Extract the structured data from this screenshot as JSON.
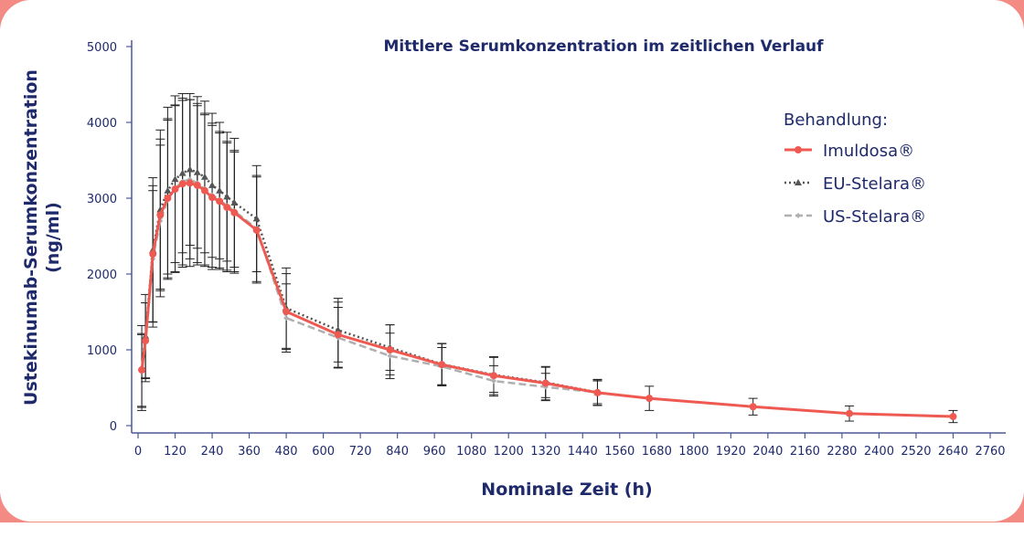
{
  "chart_data": {
    "type": "line",
    "title": "Mittlere Serumkonzentration im zeitlichen Verlauf",
    "xlabel": "Nominale Zeit (h)",
    "ylabel_line1": "Ustekinumab-Serumkonzentration",
    "ylabel_line2": "(ng/ml)",
    "xlim": [
      0,
      2760
    ],
    "ylim": [
      0,
      5000
    ],
    "xticks": [
      0,
      120,
      240,
      360,
      480,
      600,
      720,
      840,
      960,
      1080,
      1200,
      1320,
      1440,
      1560,
      1680,
      1800,
      1920,
      2040,
      2160,
      2280,
      2400,
      2520,
      2640,
      2760
    ],
    "yticks": [
      0,
      1000,
      2000,
      3000,
      4000,
      5000
    ],
    "legend_title": "Behandlung:",
    "legend_position": "top-right",
    "series": [
      {
        "name": "Imuldosa®",
        "color": "#ee5a52",
        "style": "solid",
        "marker": "circle",
        "x": [
          12,
          24,
          48,
          72,
          96,
          120,
          144,
          168,
          192,
          216,
          240,
          264,
          288,
          312,
          384,
          480,
          648,
          816,
          984,
          1152,
          1320,
          1488,
          1656,
          1992,
          2304,
          2640
        ],
        "y": [
          735,
          1120,
          2265,
          2780,
          3000,
          3120,
          3190,
          3200,
          3170,
          3100,
          3010,
          2960,
          2880,
          2810,
          2580,
          1505,
          1200,
          1000,
          805,
          660,
          560,
          435,
          360,
          250,
          160,
          120
        ],
        "sd": [
          480,
          500,
          900,
          1000,
          1050,
          1100,
          1100,
          1100,
          1050,
          1000,
          950,
          900,
          850,
          800,
          700,
          500,
          430,
          330,
          280,
          250,
          220,
          170,
          160,
          110,
          100,
          80
        ]
      },
      {
        "name": "EU-Stelara®",
        "color": "#555555",
        "style": "dotted",
        "marker": "triangle",
        "x": [
          12,
          24,
          48,
          72,
          96,
          120,
          144,
          168,
          192,
          216,
          240,
          264,
          288,
          312,
          384,
          480,
          648,
          816,
          984,
          1152,
          1320,
          1488
        ],
        "y": [
          760,
          1180,
          2320,
          2850,
          3100,
          3250,
          3330,
          3380,
          3340,
          3280,
          3170,
          3100,
          3020,
          2940,
          2730,
          1550,
          1260,
          1030,
          810,
          670,
          570,
          440
        ],
        "sd": [
          560,
          550,
          950,
          1050,
          1100,
          1100,
          1050,
          1000,
          1000,
          1000,
          950,
          900,
          850,
          850,
          700,
          530,
          420,
          300,
          270,
          230,
          200,
          170
        ]
      },
      {
        "name": "US-Stelara®",
        "color": "#b0b0b0",
        "style": "dashed",
        "marker": "diamond",
        "x": [
          12,
          24,
          48,
          72,
          96,
          120,
          144,
          168,
          192,
          216,
          240,
          264,
          288,
          312,
          384,
          480,
          648,
          816,
          984,
          1152,
          1320,
          1488
        ],
        "y": [
          720,
          1100,
          2200,
          2700,
          2980,
          3130,
          3220,
          3250,
          3200,
          3120,
          3040,
          2980,
          2900,
          2830,
          2600,
          1420,
          1160,
          920,
          780,
          590,
          510,
          440
        ],
        "sd": [
          480,
          520,
          900,
          1000,
          1050,
          1100,
          1100,
          1050,
          1050,
          1000,
          950,
          900,
          850,
          800,
          700,
          450,
          400,
          300,
          250,
          200,
          180,
          150
        ]
      }
    ]
  }
}
